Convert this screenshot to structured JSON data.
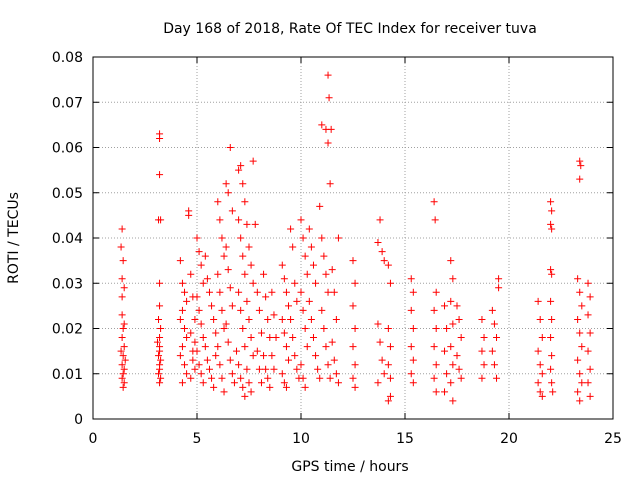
{
  "chart_data": {
    "type": "scatter",
    "title": "Day 168 of 2018, Rate Of TEC Index for receiver tuva",
    "xlabel": "GPS time / hours",
    "ylabel": "ROTI / TECUs",
    "xlim": [
      0,
      25
    ],
    "ylim": [
      0,
      0.08
    ],
    "xticks": [
      0,
      5,
      10,
      15,
      20,
      25
    ],
    "yticks": [
      0,
      0.01,
      0.02,
      0.03,
      0.04,
      0.05,
      0.06,
      0.07,
      0.08
    ],
    "xtick_labels": [
      "0",
      "5",
      "10",
      "15",
      "20",
      "25"
    ],
    "ytick_labels": [
      "0",
      "0.01",
      "0.02",
      "0.03",
      "0.04",
      "0.05",
      "0.06",
      "0.07",
      "0.08"
    ],
    "grid": true,
    "marker": "plus",
    "series_color": "#ff0000",
    "points": [
      [
        1.4,
        0.042
      ],
      [
        1.35,
        0.038
      ],
      [
        1.45,
        0.035
      ],
      [
        1.4,
        0.031
      ],
      [
        1.5,
        0.029
      ],
      [
        1.4,
        0.023
      ],
      [
        1.45,
        0.02
      ],
      [
        1.4,
        0.018
      ],
      [
        1.5,
        0.016
      ],
      [
        1.45,
        0.014
      ],
      [
        1.4,
        0.012
      ],
      [
        1.5,
        0.011
      ],
      [
        1.45,
        0.01
      ],
      [
        1.4,
        0.009
      ],
      [
        1.5,
        0.008
      ],
      [
        1.45,
        0.007
      ],
      [
        1.55,
        0.013
      ],
      [
        1.35,
        0.015
      ],
      [
        1.5,
        0.021
      ],
      [
        1.4,
        0.027
      ],
      [
        3.2,
        0.063
      ],
      [
        3.2,
        0.062
      ],
      [
        3.2,
        0.054
      ],
      [
        3.15,
        0.044
      ],
      [
        3.25,
        0.044
      ],
      [
        3.2,
        0.03
      ],
      [
        3.2,
        0.025
      ],
      [
        3.15,
        0.022
      ],
      [
        3.25,
        0.02
      ],
      [
        3.2,
        0.018
      ],
      [
        3.2,
        0.016
      ],
      [
        3.15,
        0.014
      ],
      [
        3.25,
        0.013
      ],
      [
        3.2,
        0.012
      ],
      [
        3.2,
        0.011
      ],
      [
        3.15,
        0.01
      ],
      [
        3.25,
        0.009
      ],
      [
        3.2,
        0.008
      ],
      [
        3.2,
        0.015
      ],
      [
        3.1,
        0.017
      ],
      [
        4.2,
        0.035
      ],
      [
        4.3,
        0.03
      ],
      [
        4.4,
        0.028
      ],
      [
        4.5,
        0.026
      ],
      [
        4.3,
        0.024
      ],
      [
        4.2,
        0.022
      ],
      [
        4.4,
        0.02
      ],
      [
        4.5,
        0.018
      ],
      [
        4.3,
        0.016
      ],
      [
        4.2,
        0.014
      ],
      [
        4.4,
        0.012
      ],
      [
        4.5,
        0.01
      ],
      [
        4.3,
        0.008
      ],
      [
        4.6,
        0.046
      ],
      [
        4.6,
        0.045
      ],
      [
        4.7,
        0.032
      ],
      [
        4.8,
        0.027
      ],
      [
        4.9,
        0.022
      ],
      [
        4.7,
        0.019
      ],
      [
        4.8,
        0.015
      ],
      [
        4.9,
        0.011
      ],
      [
        4.7,
        0.009
      ],
      [
        4.8,
        0.013
      ],
      [
        4.9,
        0.017
      ],
      [
        5.0,
        0.04
      ],
      [
        5.1,
        0.037
      ],
      [
        5.2,
        0.034
      ],
      [
        5.3,
        0.03
      ],
      [
        5.0,
        0.027
      ],
      [
        5.1,
        0.024
      ],
      [
        5.2,
        0.021
      ],
      [
        5.3,
        0.018
      ],
      [
        5.0,
        0.015
      ],
      [
        5.1,
        0.012
      ],
      [
        5.2,
        0.01
      ],
      [
        5.3,
        0.008
      ],
      [
        5.4,
        0.036
      ],
      [
        5.5,
        0.031
      ],
      [
        5.6,
        0.028
      ],
      [
        5.7,
        0.025
      ],
      [
        5.8,
        0.022
      ],
      [
        5.9,
        0.019
      ],
      [
        5.4,
        0.016
      ],
      [
        5.5,
        0.013
      ],
      [
        5.6,
        0.011
      ],
      [
        5.7,
        0.009
      ],
      [
        5.8,
        0.007
      ],
      [
        5.9,
        0.014
      ],
      [
        6.0,
        0.048
      ],
      [
        6.1,
        0.044
      ],
      [
        6.2,
        0.04
      ],
      [
        6.3,
        0.036
      ],
      [
        6.0,
        0.032
      ],
      [
        6.1,
        0.028
      ],
      [
        6.2,
        0.024
      ],
      [
        6.3,
        0.02
      ],
      [
        6.0,
        0.016
      ],
      [
        6.1,
        0.012
      ],
      [
        6.2,
        0.009
      ],
      [
        6.3,
        0.006
      ],
      [
        6.4,
        0.052
      ],
      [
        6.5,
        0.05
      ],
      [
        6.6,
        0.06
      ],
      [
        6.7,
        0.046
      ],
      [
        6.4,
        0.038
      ],
      [
        6.5,
        0.033
      ],
      [
        6.6,
        0.029
      ],
      [
        6.7,
        0.025
      ],
      [
        6.4,
        0.021
      ],
      [
        6.5,
        0.017
      ],
      [
        6.6,
        0.013
      ],
      [
        6.7,
        0.01
      ],
      [
        6.8,
        0.008
      ],
      [
        6.9,
        0.015
      ],
      [
        7.0,
        0.055
      ],
      [
        7.1,
        0.056
      ],
      [
        7.2,
        0.052
      ],
      [
        7.3,
        0.048
      ],
      [
        7.0,
        0.044
      ],
      [
        7.1,
        0.04
      ],
      [
        7.2,
        0.036
      ],
      [
        7.3,
        0.032
      ],
      [
        7.0,
        0.028
      ],
      [
        7.1,
        0.024
      ],
      [
        7.2,
        0.02
      ],
      [
        7.3,
        0.016
      ],
      [
        7.0,
        0.012
      ],
      [
        7.1,
        0.009
      ],
      [
        7.2,
        0.007
      ],
      [
        7.3,
        0.005
      ],
      [
        7.4,
        0.043
      ],
      [
        7.5,
        0.038
      ],
      [
        7.6,
        0.034
      ],
      [
        7.7,
        0.03
      ],
      [
        7.4,
        0.026
      ],
      [
        7.5,
        0.022
      ],
      [
        7.6,
        0.018
      ],
      [
        7.7,
        0.014
      ],
      [
        7.4,
        0.011
      ],
      [
        7.5,
        0.008
      ],
      [
        7.6,
        0.006
      ],
      [
        7.7,
        0.057
      ],
      [
        7.8,
        0.043
      ],
      [
        7.9,
        0.028
      ],
      [
        8.0,
        0.024
      ],
      [
        8.1,
        0.019
      ],
      [
        7.9,
        0.015
      ],
      [
        8.0,
        0.011
      ],
      [
        8.1,
        0.008
      ],
      [
        8.2,
        0.032
      ],
      [
        8.3,
        0.027
      ],
      [
        8.4,
        0.022
      ],
      [
        8.5,
        0.018
      ],
      [
        8.2,
        0.014
      ],
      [
        8.3,
        0.011
      ],
      [
        8.4,
        0.009
      ],
      [
        8.5,
        0.007
      ],
      [
        8.6,
        0.028
      ],
      [
        8.7,
        0.023
      ],
      [
        8.8,
        0.018
      ],
      [
        8.6,
        0.014
      ],
      [
        8.7,
        0.011
      ],
      [
        9.1,
        0.034
      ],
      [
        9.2,
        0.031
      ],
      [
        9.3,
        0.028
      ],
      [
        9.4,
        0.025
      ],
      [
        9.1,
        0.022
      ],
      [
        9.2,
        0.019
      ],
      [
        9.3,
        0.016
      ],
      [
        9.4,
        0.013
      ],
      [
        9.1,
        0.01
      ],
      [
        9.2,
        0.008
      ],
      [
        9.3,
        0.007
      ],
      [
        9.5,
        0.042
      ],
      [
        9.6,
        0.038
      ],
      [
        9.7,
        0.03
      ],
      [
        9.8,
        0.026
      ],
      [
        9.5,
        0.022
      ],
      [
        9.6,
        0.018
      ],
      [
        9.7,
        0.014
      ],
      [
        9.8,
        0.011
      ],
      [
        9.9,
        0.009
      ],
      [
        10.0,
        0.044
      ],
      [
        10.1,
        0.04
      ],
      [
        10.2,
        0.036
      ],
      [
        10.3,
        0.032
      ],
      [
        10.0,
        0.028
      ],
      [
        10.1,
        0.024
      ],
      [
        10.2,
        0.02
      ],
      [
        10.3,
        0.016
      ],
      [
        10.0,
        0.012
      ],
      [
        10.1,
        0.009
      ],
      [
        10.2,
        0.007
      ],
      [
        10.4,
        0.042
      ],
      [
        10.5,
        0.038
      ],
      [
        10.6,
        0.034
      ],
      [
        10.7,
        0.03
      ],
      [
        10.4,
        0.026
      ],
      [
        10.5,
        0.022
      ],
      [
        10.6,
        0.018
      ],
      [
        10.7,
        0.014
      ],
      [
        10.8,
        0.011
      ],
      [
        10.9,
        0.009
      ],
      [
        10.9,
        0.047
      ],
      [
        11.0,
        0.065
      ],
      [
        11.2,
        0.064
      ],
      [
        11.3,
        0.076
      ],
      [
        11.35,
        0.071
      ],
      [
        11.3,
        0.061
      ],
      [
        11.4,
        0.052
      ],
      [
        11.45,
        0.064
      ],
      [
        11.0,
        0.04
      ],
      [
        11.1,
        0.036
      ],
      [
        11.2,
        0.032
      ],
      [
        11.3,
        0.028
      ],
      [
        11.0,
        0.024
      ],
      [
        11.1,
        0.02
      ],
      [
        11.2,
        0.016
      ],
      [
        11.3,
        0.012
      ],
      [
        11.4,
        0.009
      ],
      [
        11.5,
        0.033
      ],
      [
        11.6,
        0.028
      ],
      [
        11.7,
        0.022
      ],
      [
        11.5,
        0.017
      ],
      [
        11.6,
        0.013
      ],
      [
        11.7,
        0.01
      ],
      [
        11.8,
        0.04
      ],
      [
        11.8,
        0.008
      ],
      [
        12.5,
        0.035
      ],
      [
        12.6,
        0.03
      ],
      [
        12.5,
        0.025
      ],
      [
        12.6,
        0.02
      ],
      [
        12.5,
        0.016
      ],
      [
        12.6,
        0.012
      ],
      [
        12.5,
        0.009
      ],
      [
        12.6,
        0.007
      ],
      [
        13.7,
        0.039
      ],
      [
        13.8,
        0.044
      ],
      [
        13.9,
        0.037
      ],
      [
        14.0,
        0.035
      ],
      [
        13.7,
        0.021
      ],
      [
        13.8,
        0.017
      ],
      [
        13.9,
        0.013
      ],
      [
        14.0,
        0.01
      ],
      [
        13.7,
        0.008
      ],
      [
        14.2,
        0.034
      ],
      [
        14.3,
        0.03
      ],
      [
        14.2,
        0.02
      ],
      [
        14.3,
        0.016
      ],
      [
        14.2,
        0.012
      ],
      [
        14.3,
        0.009
      ],
      [
        14.2,
        0.004
      ],
      [
        14.3,
        0.005
      ],
      [
        15.3,
        0.031
      ],
      [
        15.4,
        0.028
      ],
      [
        15.3,
        0.024
      ],
      [
        15.4,
        0.02
      ],
      [
        15.3,
        0.016
      ],
      [
        15.4,
        0.013
      ],
      [
        15.3,
        0.01
      ],
      [
        15.4,
        0.008
      ],
      [
        16.4,
        0.048
      ],
      [
        16.45,
        0.044
      ],
      [
        16.5,
        0.028
      ],
      [
        16.4,
        0.024
      ],
      [
        16.5,
        0.02
      ],
      [
        16.4,
        0.016
      ],
      [
        16.5,
        0.012
      ],
      [
        16.4,
        0.009
      ],
      [
        16.5,
        0.006
      ],
      [
        16.9,
        0.025
      ],
      [
        17.0,
        0.02
      ],
      [
        16.9,
        0.015
      ],
      [
        17.0,
        0.01
      ],
      [
        16.9,
        0.006
      ],
      [
        17.2,
        0.035
      ],
      [
        17.3,
        0.031
      ],
      [
        17.2,
        0.026
      ],
      [
        17.3,
        0.021
      ],
      [
        17.2,
        0.016
      ],
      [
        17.3,
        0.012
      ],
      [
        17.2,
        0.008
      ],
      [
        17.3,
        0.004
      ],
      [
        17.5,
        0.025
      ],
      [
        17.6,
        0.022
      ],
      [
        17.7,
        0.018
      ],
      [
        17.5,
        0.014
      ],
      [
        17.6,
        0.011
      ],
      [
        17.7,
        0.009
      ],
      [
        18.7,
        0.022
      ],
      [
        18.8,
        0.018
      ],
      [
        18.7,
        0.015
      ],
      [
        18.8,
        0.012
      ],
      [
        18.7,
        0.009
      ],
      [
        19.2,
        0.024
      ],
      [
        19.3,
        0.021
      ],
      [
        19.4,
        0.018
      ],
      [
        19.2,
        0.015
      ],
      [
        19.3,
        0.012
      ],
      [
        19.4,
        0.009
      ],
      [
        19.5,
        0.031
      ],
      [
        19.5,
        0.029
      ],
      [
        21.4,
        0.026
      ],
      [
        21.5,
        0.022
      ],
      [
        21.6,
        0.018
      ],
      [
        21.4,
        0.015
      ],
      [
        21.5,
        0.012
      ],
      [
        21.6,
        0.01
      ],
      [
        21.4,
        0.008
      ],
      [
        21.5,
        0.006
      ],
      [
        21.6,
        0.005
      ],
      [
        22.0,
        0.048
      ],
      [
        22.05,
        0.046
      ],
      [
        22.0,
        0.043
      ],
      [
        22.05,
        0.042
      ],
      [
        22.0,
        0.033
      ],
      [
        22.05,
        0.032
      ],
      [
        22.0,
        0.026
      ],
      [
        22.05,
        0.022
      ],
      [
        22.0,
        0.018
      ],
      [
        22.05,
        0.014
      ],
      [
        22.0,
        0.011
      ],
      [
        22.05,
        0.008
      ],
      [
        22.1,
        0.006
      ],
      [
        23.4,
        0.057
      ],
      [
        23.45,
        0.056
      ],
      [
        23.4,
        0.053
      ],
      [
        23.3,
        0.031
      ],
      [
        23.4,
        0.028
      ],
      [
        23.5,
        0.025
      ],
      [
        23.3,
        0.022
      ],
      [
        23.4,
        0.019
      ],
      [
        23.5,
        0.016
      ],
      [
        23.3,
        0.013
      ],
      [
        23.4,
        0.01
      ],
      [
        23.5,
        0.008
      ],
      [
        23.3,
        0.006
      ],
      [
        23.4,
        0.004
      ],
      [
        23.8,
        0.03
      ],
      [
        23.9,
        0.027
      ],
      [
        23.8,
        0.023
      ],
      [
        23.9,
        0.019
      ],
      [
        23.8,
        0.015
      ],
      [
        23.9,
        0.011
      ],
      [
        23.8,
        0.008
      ],
      [
        23.9,
        0.005
      ]
    ]
  }
}
